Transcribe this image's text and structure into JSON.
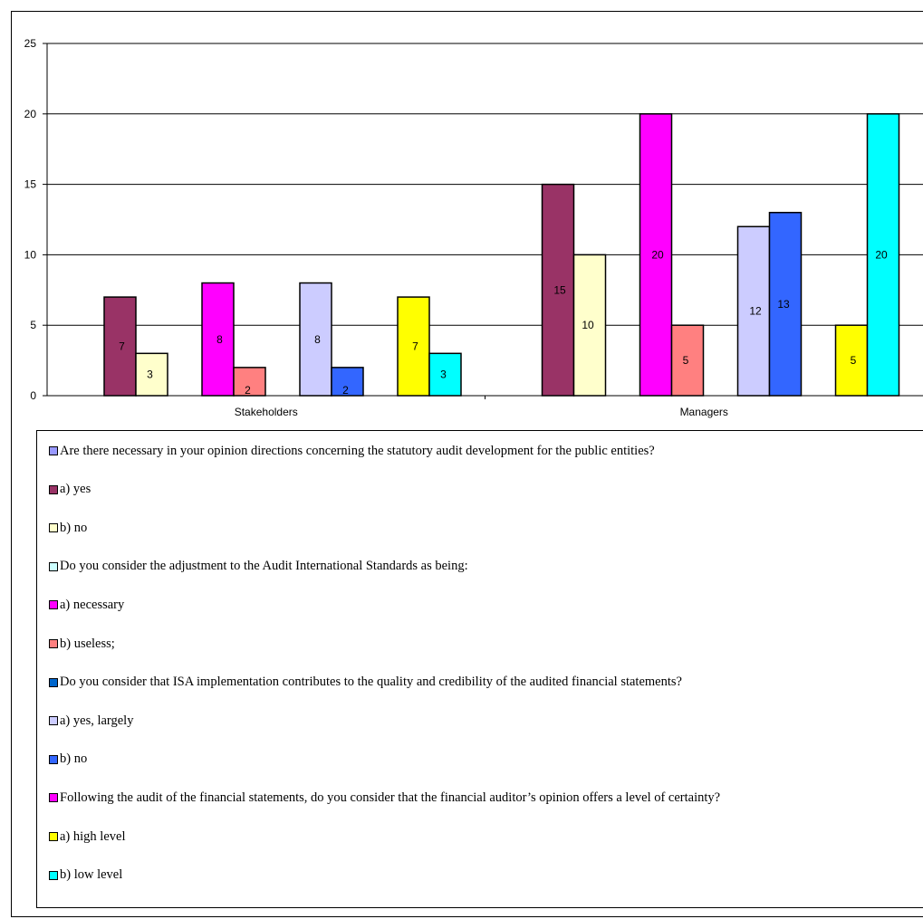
{
  "chart_data": {
    "type": "bar",
    "categories": [
      "Stakeholders",
      "Managers"
    ],
    "ylim": [
      0,
      25
    ],
    "yticks": [
      0,
      5,
      10,
      15,
      20,
      25
    ],
    "grid": true,
    "legend_position": "bottom",
    "series": [
      {
        "name": "Are there necessary in your opinion directions concerning the statutory audit development for the public entities?",
        "color": "#9999FF",
        "values": [
          null,
          null
        ],
        "group": 0
      },
      {
        "name": "a) yes",
        "color": "#993366",
        "values": [
          7,
          15
        ],
        "group": 0
      },
      {
        "name": "b) no",
        "color": "#FFFFCC",
        "values": [
          3,
          10
        ],
        "group": 0
      },
      {
        "name": "Do you consider the adjustment to the Audit International Standards as being:",
        "color": "#CCFFFF",
        "values": [
          null,
          null
        ],
        "group": 1
      },
      {
        "name": "a) necessary",
        "color": "#FF00FF",
        "values": [
          8,
          20
        ],
        "group": 1
      },
      {
        "name": "b) useless;",
        "color": "#FF8080",
        "values": [
          2,
          5
        ],
        "group": 1
      },
      {
        "name": "Do you consider that ISA implementation contributes to the quality and credibility of the audited financial statements?",
        "color": "#0066CC",
        "values": [
          null,
          null
        ],
        "group": 2
      },
      {
        "name": "a) yes, largely",
        "color": "#CCCCFF",
        "values": [
          8,
          12
        ],
        "group": 2
      },
      {
        "name": "b) no",
        "color": "#3366FF",
        "values": [
          2,
          13
        ],
        "group": 2
      },
      {
        "name": "Following the audit of the financial statements, do you consider that the financial auditor’s opinion offers a level of certainty?",
        "color": "#FF00FF",
        "values": [
          null,
          null
        ],
        "group": 3
      },
      {
        "name": "a) high level",
        "color": "#FFFF00",
        "values": [
          7,
          5
        ],
        "group": 3
      },
      {
        "name": "b) low level",
        "color": "#00FFFF",
        "values": [
          3,
          20
        ],
        "group": 3
      }
    ]
  }
}
